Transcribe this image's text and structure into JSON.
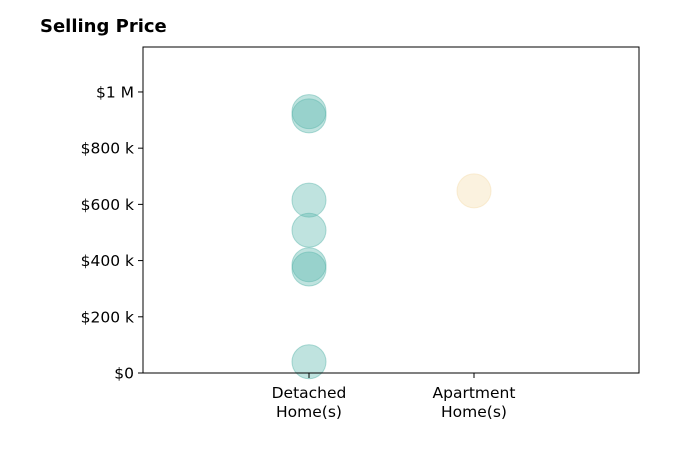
{
  "chart_data": {
    "type": "scatter",
    "title": "Selling Price",
    "xlabel": "",
    "ylabel": "",
    "categories": [
      [
        "Detached",
        "Home(s)"
      ],
      [
        "Apartment",
        "Home(s)"
      ]
    ],
    "ylim": [
      0,
      1160000
    ],
    "yticks": [
      {
        "value": 0,
        "label": "$0"
      },
      {
        "value": 200000,
        "label": "$200 k"
      },
      {
        "value": 400000,
        "label": "$400 k"
      },
      {
        "value": 600000,
        "label": "$600 k"
      },
      {
        "value": 800000,
        "label": "$800 k"
      },
      {
        "value": 1000000,
        "label": "$1 M"
      }
    ],
    "grid": false,
    "series": [
      {
        "category_index": 0,
        "color": "#5fb8ae",
        "values": [
          930000,
          915000,
          615000,
          508000,
          385000,
          370000,
          40000
        ]
      },
      {
        "category_index": 1,
        "color": "#f5deb0",
        "values": [
          648000
        ]
      }
    ]
  }
}
